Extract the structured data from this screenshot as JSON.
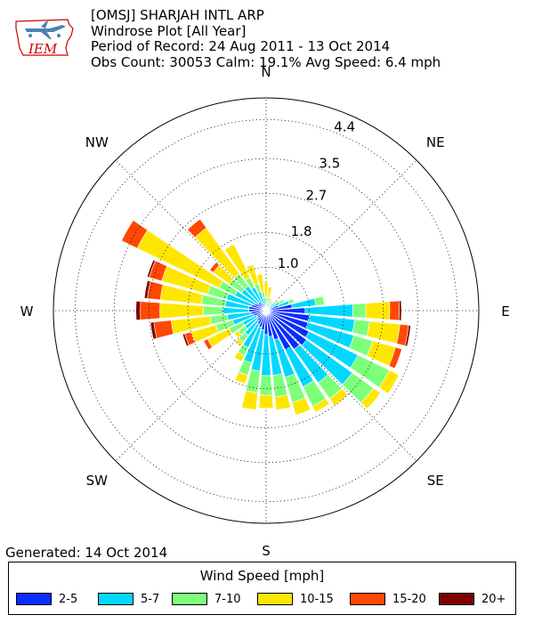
{
  "header": {
    "line1": "[OMSJ] SHARJAH INTL ARP",
    "line2": "Windrose Plot [All Year]",
    "line3": "Period of Record: 24 Aug 2011 - 13 Oct 2014",
    "line4": "Obs Count: 30053 Calm: 19.1% Avg Speed: 6.4 mph"
  },
  "logo": {
    "text": "IEM"
  },
  "footer": {
    "generated": "Generated: 14 Oct 2014"
  },
  "legend": {
    "title": "Wind Speed [mph]",
    "items": [
      {
        "label": "2-5",
        "color": "#0a2dff"
      },
      {
        "label": "5-7",
        "color": "#00d8ff"
      },
      {
        "label": "7-10",
        "color": "#7dff7a"
      },
      {
        "label": "10-15",
        "color": "#ffe600"
      },
      {
        "label": "15-20",
        "color": "#ff4800"
      },
      {
        "label": "20+",
        "color": "#800000"
      }
    ]
  },
  "chart_data": {
    "type": "windrose",
    "directions": [
      "N",
      "NE",
      "E",
      "SE",
      "S",
      "SW",
      "W",
      "NW"
    ],
    "ring_labels": [
      "1.0",
      "1.8",
      "2.7",
      "3.5",
      "4.4"
    ],
    "ring_values": [
      1.0,
      1.8,
      2.7,
      3.5,
      4.4
    ],
    "rmax": 4.9,
    "units": "percent",
    "speed_bins": [
      "2-5",
      "5-7",
      "7-10",
      "10-15",
      "15-20",
      "20+"
    ],
    "colors": [
      "#0a2dff",
      "#00d8ff",
      "#7dff7a",
      "#ffe600",
      "#ff4800",
      "#800000"
    ],
    "sectors": [
      {
        "dir": 0,
        "values": [
          0.05,
          0.1,
          0.15,
          0.35,
          0,
          0
        ]
      },
      {
        "dir": 10,
        "values": [
          0.05,
          0.12,
          0.13,
          0.25,
          0,
          0
        ]
      },
      {
        "dir": 20,
        "values": [
          0.05,
          0.1,
          0.08,
          0.08,
          0,
          0
        ]
      },
      {
        "dir": 30,
        "values": [
          0.05,
          0.1,
          0.1,
          0,
          0,
          0
        ]
      },
      {
        "dir": 40,
        "values": [
          0.05,
          0.08,
          0.08,
          0,
          0,
          0
        ]
      },
      {
        "dir": 50,
        "values": [
          0.1,
          0.15,
          0.1,
          0,
          0,
          0
        ]
      },
      {
        "dir": 60,
        "values": [
          0.15,
          0.2,
          0.12,
          0,
          0,
          0
        ]
      },
      {
        "dir": 70,
        "values": [
          0.3,
          0.25,
          0.12,
          0,
          0,
          0
        ]
      },
      {
        "dir": 80,
        "values": [
          0.6,
          0.55,
          0.2,
          0,
          0,
          0
        ]
      },
      {
        "dir": 90,
        "values": [
          0.9,
          1.1,
          0.3,
          0.55,
          0.22,
          0.05
        ]
      },
      {
        "dir": 100,
        "values": [
          1.0,
          1.05,
          0.35,
          0.7,
          0.2,
          0.05
        ]
      },
      {
        "dir": 110,
        "values": [
          1.0,
          1.1,
          0.45,
          0.55,
          0.15,
          0
        ]
      },
      {
        "dir": 120,
        "values": [
          1.1,
          1.25,
          0.8,
          0.25,
          0,
          0
        ]
      },
      {
        "dir": 130,
        "values": [
          1.15,
          1.3,
          0.6,
          0.2,
          0,
          0
        ]
      },
      {
        "dir": 140,
        "values": [
          1.1,
          0.95,
          0.45,
          0.2,
          0,
          0
        ]
      },
      {
        "dir": 150,
        "values": [
          1.0,
          0.95,
          0.5,
          0.15,
          0,
          0
        ]
      },
      {
        "dir": 160,
        "values": [
          0.7,
          0.9,
          0.6,
          0.3,
          0,
          0
        ]
      },
      {
        "dir": 170,
        "values": [
          0.6,
          0.9,
          0.5,
          0.3,
          0,
          0
        ]
      },
      {
        "dir": 180,
        "values": [
          0.55,
          0.95,
          0.45,
          0.3,
          0,
          0
        ]
      },
      {
        "dir": 190,
        "values": [
          0.45,
          0.95,
          0.5,
          0.4,
          0,
          0
        ]
      },
      {
        "dir": 200,
        "values": [
          0.4,
          0.85,
          0.3,
          0.2,
          0,
          0
        ]
      },
      {
        "dir": 210,
        "values": [
          0.35,
          0.6,
          0.2,
          0.15,
          0,
          0
        ]
      },
      {
        "dir": 220,
        "values": [
          0.3,
          0.4,
          0.2,
          0.1,
          0,
          0
        ]
      },
      {
        "dir": 230,
        "values": [
          0.25,
          0.35,
          0.2,
          0.1,
          0,
          0
        ]
      },
      {
        "dir": 240,
        "values": [
          0.25,
          0.35,
          0.35,
          0.55,
          0.1,
          0
        ]
      },
      {
        "dir": 250,
        "values": [
          0.3,
          0.5,
          0.4,
          0.6,
          0.15,
          0.05
        ]
      },
      {
        "dir": 260,
        "values": [
          0.35,
          0.55,
          0.4,
          0.9,
          0.4,
          0.08
        ]
      },
      {
        "dir": 270,
        "values": [
          0.4,
          0.6,
          0.45,
          1.0,
          0.45,
          0.1
        ]
      },
      {
        "dir": 280,
        "values": [
          0.4,
          0.55,
          0.55,
          0.95,
          0.3,
          0.07
        ]
      },
      {
        "dir": 290,
        "values": [
          0.35,
          0.6,
          0.45,
          1.1,
          0.3,
          0.05
        ]
      },
      {
        "dir": 300,
        "values": [
          0.3,
          0.5,
          0.4,
          2.1,
          0.4,
          0
        ]
      },
      {
        "dir": 310,
        "values": [
          0.25,
          0.45,
          0.35,
          0.45,
          0.1,
          0
        ]
      },
      {
        "dir": 320,
        "values": [
          0.25,
          0.45,
          0.35,
          1.3,
          0.25,
          0
        ]
      },
      {
        "dir": 330,
        "values": [
          0.2,
          0.4,
          0.25,
          0.85,
          0,
          0
        ]
      },
      {
        "dir": 340,
        "values": [
          0.15,
          0.3,
          0.2,
          0.45,
          0,
          0
        ]
      },
      {
        "dir": 350,
        "values": [
          0.1,
          0.2,
          0.15,
          0.4,
          0,
          0
        ]
      }
    ]
  }
}
